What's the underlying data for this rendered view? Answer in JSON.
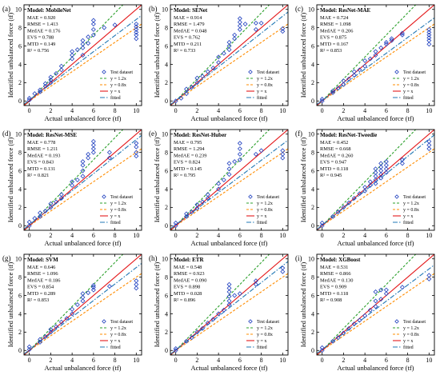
{
  "figure": {
    "x_label": "Actual unbalanced force (tf)",
    "y_label": "Identified unbalanced force (tf)",
    "x_ticks": [
      0,
      2,
      4,
      6,
      8,
      10
    ],
    "y_ticks": [
      0,
      2,
      4,
      6,
      8,
      10
    ],
    "legend": [
      "Test dataset",
      "y = 1.2x",
      "y = 0.8x",
      "y = x",
      "fitted"
    ],
    "colors": {
      "marker": "#1f3fbf",
      "line_1_2x": "#2ca02c",
      "line_0_8x": "#ff8c00",
      "line_x": "#e41a1c",
      "line_fitted": "#1f77b4"
    },
    "metric_labels": [
      "MAE",
      "RMSE",
      "MedAE",
      "EVS",
      "MTD",
      "R²"
    ]
  },
  "chart_data": [
    {
      "type": "scatter",
      "panel": "(a)",
      "title": "Model:  MobileNet",
      "metrics": {
        "MAE": "0.920",
        "RMSE": "1.413",
        "MedAE": "0.176",
        "EVS": "0.788",
        "MTD": "0.149",
        "R2": "0.756"
      },
      "xlim": [
        -0.5,
        10.5
      ],
      "ylim": [
        -0.5,
        10.5
      ],
      "fitted": {
        "slope": 0.88,
        "intercept": 0.1
      },
      "points": [
        [
          0,
          0.1
        ],
        [
          0,
          0.3
        ],
        [
          0.5,
          0.8
        ],
        [
          1,
          1.0
        ],
        [
          1,
          1.2
        ],
        [
          1.5,
          1.6
        ],
        [
          1.5,
          1.9
        ],
        [
          2,
          2.3
        ],
        [
          2,
          2.6
        ],
        [
          2,
          2.0
        ],
        [
          2.5,
          3.0
        ],
        [
          3,
          3.4
        ],
        [
          3,
          3.8
        ],
        [
          4,
          4.6
        ],
        [
          4,
          5.0
        ],
        [
          4,
          5.4
        ],
        [
          4.5,
          5.6
        ],
        [
          5,
          5.0
        ],
        [
          5,
          5.8
        ],
        [
          5,
          6.2
        ],
        [
          5,
          6.6
        ],
        [
          5.5,
          6.3
        ],
        [
          5.5,
          7.0
        ],
        [
          6,
          7.2
        ],
        [
          6,
          7.8
        ],
        [
          6,
          8.4
        ],
        [
          6,
          8.8
        ],
        [
          7,
          8.0
        ],
        [
          8,
          8.3
        ],
        [
          10,
          6.8
        ],
        [
          10,
          7.2
        ],
        [
          10,
          7.5
        ],
        [
          10,
          7.8
        ],
        [
          10,
          8.1
        ],
        [
          10,
          8.4
        ]
      ]
    },
    {
      "type": "scatter",
      "panel": "(b)",
      "title": "Model:  SENet",
      "metrics": {
        "MAE": "0.914",
        "RMSE": "1.479",
        "MedAE": "0.048",
        "EVS": "0.762",
        "MTD": "0.211",
        "R2": "0.733"
      },
      "xlim": [
        -0.5,
        10.5
      ],
      "ylim": [
        -0.5,
        10.5
      ],
      "fitted": {
        "slope": 0.92,
        "intercept": 0.05
      },
      "points": [
        [
          0,
          0.0
        ],
        [
          0.5,
          0.3
        ],
        [
          1,
          0.8
        ],
        [
          1,
          1.3
        ],
        [
          1.5,
          1.5
        ],
        [
          2,
          2.0
        ],
        [
          2,
          2.5
        ],
        [
          2.5,
          2.7
        ],
        [
          3,
          3.2
        ],
        [
          3.5,
          3.6
        ],
        [
          4,
          4.2
        ],
        [
          4,
          4.8
        ],
        [
          4.5,
          5.2
        ],
        [
          5,
          5.6
        ],
        [
          5,
          6.0
        ],
        [
          5,
          6.4
        ],
        [
          5.5,
          6.8
        ],
        [
          5.5,
          7.2
        ],
        [
          6,
          7.8
        ],
        [
          6,
          8.2
        ],
        [
          6,
          8.6
        ],
        [
          6,
          9.0
        ],
        [
          6.5,
          8.4
        ],
        [
          7.5,
          7.8
        ],
        [
          7.5,
          8.5
        ],
        [
          8,
          8.5
        ],
        [
          10,
          7.6
        ],
        [
          10,
          7.9
        ]
      ]
    },
    {
      "type": "scatter",
      "panel": "(c)",
      "title": "Model:  ResNet-MAE",
      "metrics": {
        "MAE": "0.724",
        "RMSE": "1.098",
        "MedAE": "0.206",
        "EVS": "0.875",
        "MTD": "0.167",
        "R2": "0.853"
      },
      "xlim": [
        -0.5,
        10.5
      ],
      "ylim": [
        -0.5,
        10.5
      ],
      "fitted": {
        "slope": 0.86,
        "intercept": 0.05
      },
      "points": [
        [
          0,
          0.0
        ],
        [
          0,
          0.2
        ],
        [
          1,
          0.9
        ],
        [
          1,
          1.1
        ],
        [
          1.5,
          1.4
        ],
        [
          2,
          1.8
        ],
        [
          2,
          2.2
        ],
        [
          2.5,
          2.4
        ],
        [
          3,
          2.8
        ],
        [
          3,
          3.2
        ],
        [
          3.5,
          3.4
        ],
        [
          4,
          3.8
        ],
        [
          4,
          4.4
        ],
        [
          4.5,
          4.6
        ],
        [
          5,
          5.0
        ],
        [
          5,
          5.4
        ],
        [
          5.5,
          5.8
        ],
        [
          6,
          6.2
        ],
        [
          6,
          6.4
        ],
        [
          6.5,
          6.6
        ],
        [
          6.5,
          6.8
        ],
        [
          7.5,
          7.2
        ],
        [
          7.5,
          7.4
        ],
        [
          10,
          6.2
        ],
        [
          10,
          6.6
        ],
        [
          10,
          6.9
        ],
        [
          10,
          7.2
        ],
        [
          10,
          7.5
        ],
        [
          10,
          7.8
        ]
      ]
    },
    {
      "type": "scatter",
      "panel": "(d)",
      "title": "Model:  ResNet-MSE",
      "metrics": {
        "MAE": "0.778",
        "RMSE": "1.211",
        "MedAE": "0.193",
        "EVS": "0.843",
        "MTD": "0.131",
        "R2": "0.821"
      },
      "xlim": [
        -0.5,
        10.5
      ],
      "ylim": [
        -0.5,
        10.5
      ],
      "fitted": {
        "slope": 0.93,
        "intercept": 0.1
      },
      "points": [
        [
          0,
          0.0
        ],
        [
          0,
          0.4
        ],
        [
          0.5,
          0.8
        ],
        [
          1,
          1.0
        ],
        [
          1,
          1.4
        ],
        [
          1.5,
          1.6
        ],
        [
          2,
          2.0
        ],
        [
          2,
          2.4
        ],
        [
          2.5,
          2.6
        ],
        [
          3,
          3.0
        ],
        [
          3,
          3.4
        ],
        [
          4,
          4.4
        ],
        [
          4,
          4.8
        ],
        [
          4.5,
          5.0
        ],
        [
          5,
          5.4
        ],
        [
          5,
          6.0
        ],
        [
          5,
          6.6
        ],
        [
          5,
          7.0
        ],
        [
          5.5,
          7.4
        ],
        [
          5.5,
          7.8
        ],
        [
          6,
          8.0
        ],
        [
          6,
          8.4
        ],
        [
          6,
          8.8
        ],
        [
          6,
          9.2
        ],
        [
          7.5,
          7.4
        ],
        [
          7.5,
          8.0
        ],
        [
          10,
          7.6
        ],
        [
          10,
          8.0
        ],
        [
          10,
          8.6
        ],
        [
          10,
          9.0
        ]
      ]
    },
    {
      "type": "scatter",
      "panel": "(e)",
      "title": "Model:  ResNet-Huber",
      "metrics": {
        "MAE": "0.795",
        "RMSE": "1.294",
        "MedAE": "0.239",
        "EVS": "0.824",
        "MTD": "0.145",
        "R2": "0.795"
      },
      "xlim": [
        -0.5,
        10.5
      ],
      "ylim": [
        -0.5,
        10.5
      ],
      "fitted": {
        "slope": 0.88,
        "intercept": 0.1
      },
      "points": [
        [
          0,
          0.0
        ],
        [
          0,
          0.3
        ],
        [
          1,
          1.0
        ],
        [
          1,
          1.3
        ],
        [
          1.5,
          1.5
        ],
        [
          2,
          1.9
        ],
        [
          2,
          2.3
        ],
        [
          2.5,
          2.6
        ],
        [
          3,
          3.0
        ],
        [
          3,
          3.4
        ],
        [
          4,
          4.0
        ],
        [
          4,
          4.6
        ],
        [
          4.5,
          5.0
        ],
        [
          5,
          5.6
        ],
        [
          5,
          6.2
        ],
        [
          5,
          6.8
        ],
        [
          5.5,
          7.0
        ],
        [
          6,
          7.2
        ],
        [
          6,
          7.8
        ],
        [
          6,
          8.4
        ],
        [
          6,
          9.0
        ],
        [
          7.5,
          7.8
        ],
        [
          8,
          8.2
        ],
        [
          10,
          7.4
        ],
        [
          10,
          7.8
        ],
        [
          10,
          8.2
        ]
      ]
    },
    {
      "type": "scatter",
      "panel": "(f)",
      "title": "Model:  ResNet-Tweedie",
      "metrics": {
        "MAE": "0.452",
        "RMSE": "0.668",
        "MedAE": "0.260",
        "EVS": "0.947",
        "MTD": "0.118",
        "R2": "0.945"
      },
      "xlim": [
        -0.5,
        10.5
      ],
      "ylim": [
        -0.5,
        10.5
      ],
      "fitted": {
        "slope": 0.94,
        "intercept": 0.05
      },
      "points": [
        [
          0,
          0.0
        ],
        [
          0,
          0.3
        ],
        [
          1,
          1.0
        ],
        [
          1.5,
          1.5
        ],
        [
          2,
          2.0
        ],
        [
          2.5,
          2.5
        ],
        [
          3,
          3.0
        ],
        [
          3.5,
          3.5
        ],
        [
          4,
          3.8
        ],
        [
          4,
          4.2
        ],
        [
          4.5,
          4.4
        ],
        [
          4.5,
          4.8
        ],
        [
          5,
          4.6
        ],
        [
          5,
          5.0
        ],
        [
          5,
          5.4
        ],
        [
          5,
          5.8
        ],
        [
          5,
          6.2
        ],
        [
          5.5,
          5.2
        ],
        [
          5.5,
          5.6
        ],
        [
          5.5,
          6.0
        ],
        [
          5.5,
          6.4
        ],
        [
          5.5,
          6.8
        ],
        [
          6,
          5.8
        ],
        [
          6,
          6.2
        ],
        [
          6,
          6.6
        ],
        [
          6,
          7.0
        ],
        [
          7.5,
          6.8
        ],
        [
          7.5,
          7.2
        ],
        [
          10,
          8.4
        ],
        [
          10,
          8.8
        ],
        [
          10,
          9.2
        ]
      ]
    },
    {
      "type": "scatter",
      "panel": "(g)",
      "title": "Model:  SVM",
      "metrics": {
        "MAE": "0.646",
        "RMSE": "1.096",
        "MedAE": "0.186",
        "EVS": "0.854",
        "MTD": "0.289",
        "R2": "0.853"
      },
      "xlim": [
        -0.5,
        10.5
      ],
      "ylim": [
        -0.5,
        10.5
      ],
      "fitted": {
        "slope": 0.9,
        "intercept": 0.05
      },
      "points": [
        [
          0,
          0.1
        ],
        [
          0,
          0.4
        ],
        [
          1,
          0.9
        ],
        [
          1,
          1.2
        ],
        [
          1.5,
          1.5
        ],
        [
          2,
          2.0
        ],
        [
          2,
          2.3
        ],
        [
          2.5,
          2.6
        ],
        [
          3,
          3.1
        ],
        [
          3.5,
          3.5
        ],
        [
          4,
          4.0
        ],
        [
          4,
          4.5
        ],
        [
          4.5,
          5.0
        ],
        [
          5,
          5.4
        ],
        [
          5,
          5.8
        ],
        [
          5,
          6.2
        ],
        [
          5.5,
          6.3
        ],
        [
          6,
          6.6
        ],
        [
          6,
          6.9
        ],
        [
          6,
          7.1
        ],
        [
          7.5,
          7.0
        ],
        [
          10,
          6.8
        ],
        [
          10,
          7.2
        ],
        [
          10,
          7.6
        ]
      ]
    },
    {
      "type": "scatter",
      "panel": "(h)",
      "title": "Model:  ETR",
      "metrics": {
        "MAE": "0.548",
        "RMSE": "0.923",
        "MedAE": "0.090",
        "EVS": "0.898",
        "MTD": "0.028",
        "R2": "0.896"
      },
      "xlim": [
        -0.5,
        10.5
      ],
      "ylim": [
        -0.5,
        10.5
      ],
      "fitted": {
        "slope": 0.92,
        "intercept": 0.05
      },
      "points": [
        [
          0,
          0.0
        ],
        [
          0,
          0.2
        ],
        [
          1,
          1.0
        ],
        [
          1.5,
          1.4
        ],
        [
          2,
          2.0
        ],
        [
          2.5,
          2.4
        ],
        [
          3,
          3.0
        ],
        [
          3.5,
          3.4
        ],
        [
          4,
          4.0
        ],
        [
          4.5,
          4.4
        ],
        [
          5,
          5.0
        ],
        [
          5,
          5.4
        ],
        [
          5,
          5.9
        ],
        [
          5,
          6.4
        ],
        [
          5,
          6.8
        ],
        [
          5,
          7.2
        ],
        [
          5.5,
          6.0
        ],
        [
          6,
          6.2
        ],
        [
          7.5,
          7.2
        ],
        [
          7.5,
          7.6
        ],
        [
          10,
          8.6
        ],
        [
          10,
          9.0
        ]
      ]
    },
    {
      "type": "scatter",
      "panel": "(i)",
      "title": "Model:  XGBoost",
      "metrics": {
        "MAE": "0.531",
        "RMSE": "0.866",
        "MedAE": "0.130",
        "EVS": "0.909",
        "MTD": "0.118",
        "R2": "0.908"
      },
      "xlim": [
        -0.5,
        10.5
      ],
      "ylim": [
        -0.5,
        10.5
      ],
      "fitted": {
        "slope": 0.88,
        "intercept": 0.1
      },
      "points": [
        [
          0,
          0.0
        ],
        [
          0,
          0.3
        ],
        [
          1,
          1.0
        ],
        [
          1.5,
          1.4
        ],
        [
          2,
          1.9
        ],
        [
          2.5,
          2.4
        ],
        [
          3,
          2.9
        ],
        [
          3.5,
          3.3
        ],
        [
          4,
          3.8
        ],
        [
          4.5,
          4.4
        ],
        [
          5,
          4.8
        ],
        [
          5,
          5.4
        ],
        [
          5,
          6.4
        ],
        [
          5.5,
          5.6
        ],
        [
          5.5,
          6.6
        ],
        [
          6,
          6.2
        ],
        [
          6,
          6.6
        ],
        [
          7.5,
          6.9
        ],
        [
          10,
          7.8
        ],
        [
          10,
          8.2
        ]
      ]
    }
  ]
}
